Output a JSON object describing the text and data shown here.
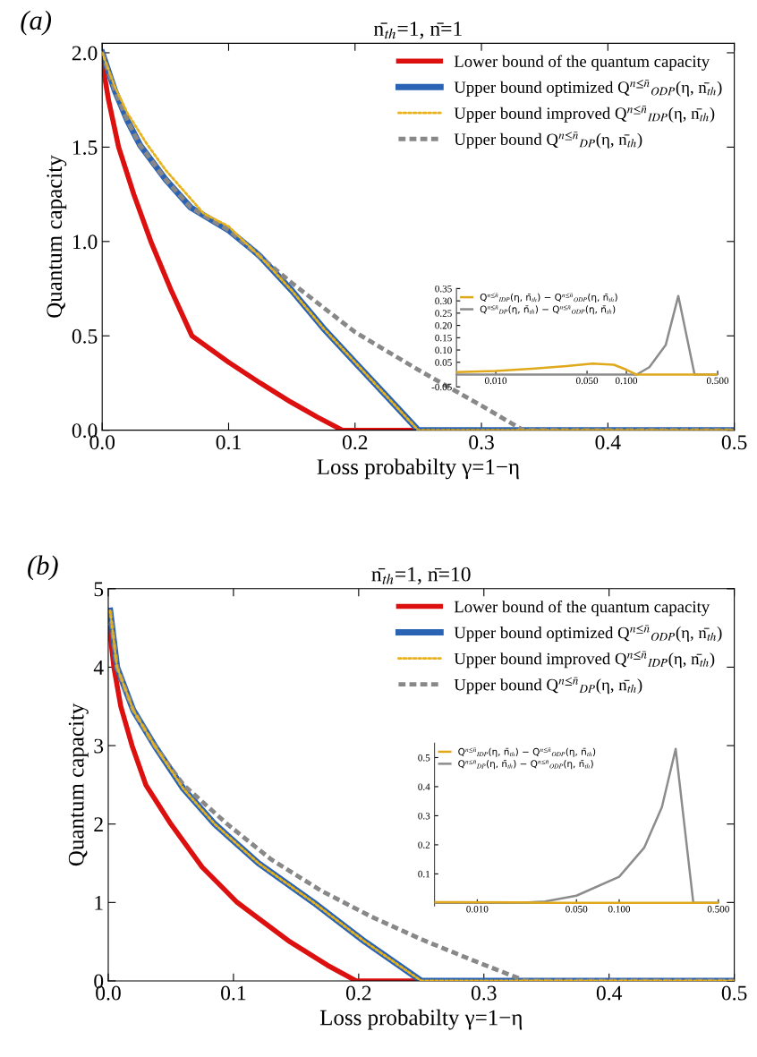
{
  "chart_data": [
    {
      "type": "line",
      "title": "n̄$_{th}$=1, n̄=1",
      "xlabel": "Loss probabilty γ=1−η",
      "ylabel": "Quantum capacity",
      "annotations": [
        "(a)"
      ],
      "xlim": [
        0,
        0.5
      ],
      "ylim": [
        0,
        2.05
      ],
      "xticks": [
        {
          "value": 0,
          "label": "0.0"
        },
        0.1,
        0.2,
        0.3,
        0.4,
        0.5
      ],
      "yticks": [
        {
          "value": 0,
          "label": "0.0"
        },
        0.5,
        {
          "value": 1,
          "label": "1.0"
        },
        1.5,
        {
          "value": 2,
          "label": "2.0"
        }
      ],
      "legend": "top right",
      "grid": false,
      "series": [
        {
          "name": "Lower bound of the quantum capacity",
          "color": "#dd1010",
          "line_style": "solid",
          "x": [
            0,
            0.005,
            0.013,
            0.025,
            0.0385,
            0.054,
            0.071,
            0.1,
            0.125,
            0.149,
            0.17,
            0.19,
            0.5
          ],
          "values": [
            1.95,
            1.75,
            1.5,
            1.25,
            1.0,
            0.75,
            0.5,
            0.36,
            0.25,
            0.15,
            0.07,
            0,
            0
          ]
        },
        {
          "name": "Upper bound optimized Q$^{n≤n̄}$$_{ODP}$(η, n̄$_{th}$)",
          "color": "#2a63b4",
          "line_style": "solid",
          "x": [
            0,
            0.01,
            0.02,
            0.03,
            0.05,
            0.07,
            0.09,
            0.1,
            0.12,
            0.125,
            0.15,
            0.175,
            0.2,
            0.225,
            0.25,
            0.5
          ],
          "values": [
            2.0,
            1.8,
            1.64,
            1.51,
            1.33,
            1.18,
            1.1,
            1.06,
            0.95,
            0.92,
            0.74,
            0.54,
            0.36,
            0.18,
            0,
            0
          ]
        },
        {
          "name": "Upper bound improved Q$^{n≤n̄}$$_{IDP}$(η, n̄$_{th}$)",
          "color": "#e8b21c",
          "line_style": "dotted",
          "x": [
            0,
            0.01,
            0.02,
            0.035,
            0.05,
            0.08,
            0.1,
            0.12,
            0.125,
            0.15,
            0.175,
            0.2,
            0.225,
            0.25,
            0.5
          ],
          "values": [
            2.0,
            1.82,
            1.68,
            1.52,
            1.38,
            1.15,
            1.08,
            0.95,
            0.92,
            0.74,
            0.54,
            0.36,
            0.18,
            0,
            0
          ]
        },
        {
          "name": "Upper bound Q$^{n≤n̄}$$_{DP}$(η, n̄$_{th}$)",
          "color": "#888888",
          "line_style": "dashed",
          "x": [
            0,
            0.01,
            0.02,
            0.03,
            0.05,
            0.07,
            0.09,
            0.1,
            0.12,
            0.125,
            0.15,
            0.2,
            0.25,
            0.3,
            0.333,
            0.5
          ],
          "values": [
            2.0,
            1.8,
            1.64,
            1.51,
            1.33,
            1.18,
            1.1,
            1.06,
            0.95,
            0.92,
            0.78,
            0.52,
            0.32,
            0.13,
            0,
            0
          ]
        }
      ]
    },
    {
      "type": "line",
      "log": "x",
      "xlim": [
        0.005,
        0.5
      ],
      "ylim": [
        -0.05,
        0.35
      ],
      "xticks": [
        {
          "value": 0.01,
          "label": "0.010"
        },
        {
          "value": 0.05,
          "label": "0.050"
        },
        {
          "value": 0.1,
          "label": "0.100"
        },
        {
          "value": 0.5,
          "label": "0.500"
        }
      ],
      "yticks": [
        -0.05,
        {
          "value": 0,
          "label": null
        },
        0.05,
        {
          "value": 0.1,
          "label": "0.10"
        },
        0.15,
        {
          "value": 0.2,
          "label": "0.20"
        },
        0.25,
        {
          "value": 0.3,
          "label": "0.30"
        },
        0.35
      ],
      "legend": "top left",
      "series": [
        {
          "name": "Q$^{n≤n̄}$$_{IDP}$(η, n̄$_{th}$) − Q$^{n≤n̄}$$_{ODP}$(η, n̄$_{th}$)",
          "color": "#e0a91b",
          "line_style": "solid",
          "x": [
            0.005,
            0.01,
            0.02,
            0.035,
            0.055,
            0.08,
            0.1,
            0.12,
            0.5
          ],
          "values": [
            0.01,
            0.015,
            0.025,
            0.035,
            0.045,
            0.04,
            0.02,
            0,
            0
          ]
        },
        {
          "name": "Q$^{n≤n̄}$$_{DP}$(η, n̄$_{th}$) − Q$^{n≤n̄}$$_{ODP}$(η, n̄$_{th}$)",
          "color": "#8c8c8c",
          "line_style": "solid",
          "x": [
            0.005,
            0.12,
            0.15,
            0.2,
            0.25,
            0.333,
            0.5
          ],
          "values": [
            0,
            0,
            0.03,
            0.12,
            0.32,
            0,
            0
          ]
        }
      ]
    },
    {
      "type": "line",
      "title": "n̄$_{th}$=1, n̄=10",
      "xlabel": "Loss probabilty γ=1−η",
      "ylabel": "Quantum capacity",
      "annotations": [
        "(b)"
      ],
      "xlim": [
        0,
        0.5
      ],
      "ylim": [
        0,
        5
      ],
      "xticks": [
        {
          "value": 0,
          "label": "0.0"
        },
        0.1,
        0.2,
        0.3,
        0.4,
        0.5
      ],
      "yticks": [
        0,
        1,
        2,
        3,
        4,
        5
      ],
      "legend": "top right",
      "grid": false,
      "series": [
        {
          "name": "Lower bound of the quantum capacity",
          "color": "#dd1010",
          "line_style": "solid",
          "x": [
            0.001,
            0.0045,
            0.01,
            0.019,
            0.03,
            0.05,
            0.075,
            0.103,
            0.145,
            0.175,
            0.198,
            0.5
          ],
          "values": [
            4.5,
            4.0,
            3.5,
            3.0,
            2.5,
            2.0,
            1.45,
            1.0,
            0.5,
            0.2,
            0,
            0
          ]
        },
        {
          "name": "Upper bound optimized Q$^{n≤n̄}$$_{ODP}$(η, n̄$_{th}$)",
          "color": "#2a63b4",
          "line_style": "solid",
          "x": [
            0.0015,
            0.007,
            0.02,
            0.037,
            0.06,
            0.085,
            0.12,
            0.164,
            0.205,
            0.25,
            0.5
          ],
          "values": [
            4.72,
            4.0,
            3.45,
            3.0,
            2.45,
            2.0,
            1.5,
            1.0,
            0.5,
            0,
            0
          ]
        },
        {
          "name": "Upper bound improved Q$^{n≤n̄}$$_{IDP}$(η, n̄$_{th}$)",
          "color": "#e8b21c",
          "line_style": "dotted",
          "x": [
            0.0015,
            0.007,
            0.02,
            0.037,
            0.06,
            0.085,
            0.12,
            0.164,
            0.205,
            0.25,
            0.5
          ],
          "values": [
            4.72,
            4.0,
            3.45,
            3.0,
            2.45,
            2.0,
            1.5,
            1.0,
            0.5,
            0,
            0
          ]
        },
        {
          "name": "Upper bound Q$^{n≤n̄}$$_{DP}$(η, n̄$_{th}$)",
          "color": "#888888",
          "line_style": "dashed",
          "x": [
            0.0015,
            0.007,
            0.02,
            0.037,
            0.06,
            0.095,
            0.13,
            0.17,
            0.21,
            0.25,
            0.29,
            0.333,
            0.5
          ],
          "values": [
            4.72,
            4.0,
            3.45,
            3.0,
            2.5,
            2.0,
            1.55,
            1.15,
            0.82,
            0.53,
            0.27,
            0,
            0
          ]
        }
      ]
    },
    {
      "type": "line",
      "log": "x",
      "xlim": [
        0.005,
        0.5
      ],
      "ylim": [
        -0.01,
        0.55
      ],
      "xticks": [
        {
          "value": 0.01,
          "label": "0.010"
        },
        {
          "value": 0.05,
          "label": "0.050"
        },
        {
          "value": 0.1,
          "label": "0.100"
        },
        {
          "value": 0.5,
          "label": "0.500"
        }
      ],
      "yticks": [
        0.1,
        0.2,
        0.3,
        0.4,
        0.5
      ],
      "legend": "top left",
      "series": [
        {
          "name": "Q$^{n≤n̄}$$_{IDP}$(η, n̄$_{th}$) − Q$^{n≤n̄}$$_{ODP}$(η, n̄$_{th}$)",
          "color": "#e0a91b",
          "line_style": "solid",
          "x": [
            0.005,
            0.02,
            0.03,
            0.5
          ],
          "values": [
            0.003,
            0.002,
            0,
            0
          ]
        },
        {
          "name": "Q$^{n≤n̄}$$_{DP}$(η, n̄$_{th}$) − Q$^{n≤n̄}$$_{ODP}$(η, n̄$_{th}$)",
          "color": "#8c8c8c",
          "line_style": "solid",
          "x": [
            0.005,
            0.02,
            0.03,
            0.05,
            0.1,
            0.15,
            0.2,
            0.25,
            0.333,
            0.5
          ],
          "values": [
            0,
            0,
            0.005,
            0.025,
            0.09,
            0.19,
            0.33,
            0.53,
            0,
            0
          ]
        }
      ]
    }
  ]
}
